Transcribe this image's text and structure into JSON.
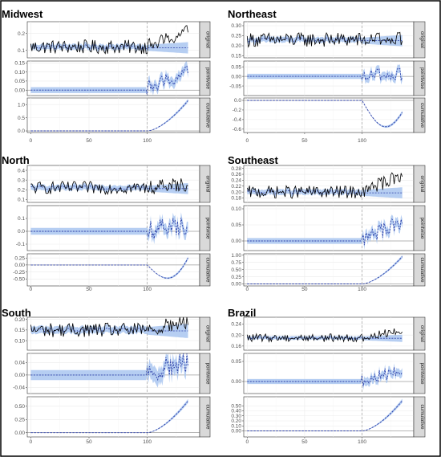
{
  "chart_data": [
    {
      "type": "line",
      "region": "Midwest",
      "intervention_x": 100,
      "xlim": [
        -3,
        145
      ],
      "xticks": [
        0,
        50,
        100
      ],
      "panels": [
        {
          "name": "original",
          "ylim": [
            0.055,
            0.27
          ],
          "yticks": [
            0.1,
            0.2
          ],
          "ytick_labels": [
            "0.1",
            "0.2"
          ]
        },
        {
          "name": "pointwise",
          "ylim": [
            -0.03,
            0.16
          ],
          "yticks": [
            0.0,
            0.05,
            0.1,
            0.15
          ],
          "ytick_labels": [
            "0.00",
            "0.05",
            "0.10",
            "0.15"
          ]
        },
        {
          "name": "cumulative",
          "ylim": [
            -0.06,
            1.25
          ],
          "yticks": [
            0.0,
            0.5,
            1.0
          ],
          "ytick_labels": [
            "0.0",
            "0.5",
            "1.0"
          ]
        }
      ],
      "series": {
        "base": 0.12,
        "noise": 0.035,
        "post_shift": 0.045,
        "band": 0.018,
        "cum_end": 1.15,
        "cum_shape": "rise"
      }
    },
    {
      "type": "line",
      "region": "Northeast",
      "intervention_x": 100,
      "xlim": [
        -3,
        145
      ],
      "xticks": [
        0,
        50,
        100
      ],
      "panels": [
        {
          "name": "original",
          "ylim": [
            0.14,
            0.32
          ],
          "yticks": [
            0.15,
            0.2,
            0.25,
            0.3
          ],
          "ytick_labels": [
            "0.15",
            "0.20",
            "0.25",
            "0.30"
          ]
        },
        {
          "name": "pointwise",
          "ylim": [
            -0.1,
            0.08
          ],
          "yticks": [
            -0.05,
            0.0,
            0.05
          ],
          "ytick_labels": [
            "-0.05",
            "0.00",
            "0.05"
          ]
        },
        {
          "name": "cumulative",
          "ylim": [
            -0.67,
            0.05
          ],
          "yticks": [
            0.0,
            -0.2,
            -0.4,
            -0.6
          ],
          "ytick_labels": [
            "0.0",
            "-0.2",
            "-0.4",
            "-0.6"
          ]
        }
      ],
      "series": {
        "base": 0.23,
        "noise": 0.03,
        "post_shift": 0.0,
        "band": 0.015,
        "cum_end": -0.3,
        "cum_shape": "dip"
      }
    },
    {
      "type": "line",
      "region": "North",
      "intervention_x": 100,
      "xlim": [
        -3,
        145
      ],
      "xticks": [
        0,
        50,
        100
      ],
      "panels": [
        {
          "name": "original",
          "ylim": [
            0.07,
            0.45
          ],
          "yticks": [
            0.1,
            0.2,
            0.3,
            0.4
          ],
          "ytick_labels": [
            "0.1",
            "0.2",
            "0.3",
            "0.4"
          ]
        },
        {
          "name": "pointwise",
          "ylim": [
            -0.15,
            0.2
          ],
          "yticks": [
            -0.1,
            0.0,
            0.1
          ],
          "ytick_labels": [
            "-0.1",
            "0.0",
            "0.1"
          ]
        },
        {
          "name": "cumulative",
          "ylim": [
            -0.75,
            0.4
          ],
          "yticks": [
            0.25,
            0.0,
            -0.25,
            -0.5
          ],
          "ytick_labels": [
            "0.25",
            "0.00",
            "-0.25",
            "-0.50"
          ]
        }
      ],
      "series": {
        "base": 0.22,
        "noise": 0.055,
        "post_shift": 0.02,
        "band": 0.03,
        "cum_end": 0.2,
        "cum_shape": "dip"
      }
    },
    {
      "type": "line",
      "region": "Southeast",
      "intervention_x": 100,
      "xlim": [
        -3,
        145
      ],
      "xticks": [
        0,
        50,
        100
      ],
      "panels": [
        {
          "name": "original",
          "ylim": [
            0.165,
            0.29
          ],
          "yticks": [
            0.18,
            0.2,
            0.22,
            0.24,
            0.26,
            0.28
          ],
          "ytick_labels": [
            "0.18",
            "0.20",
            "0.22",
            "0.24",
            "0.26",
            "0.28"
          ]
        },
        {
          "name": "pointwise",
          "ylim": [
            -0.03,
            0.11
          ],
          "yticks": [
            0.0,
            0.05,
            0.1
          ],
          "ytick_labels": [
            "0.00",
            "0.05",
            "0.10"
          ]
        },
        {
          "name": "cumulative",
          "ylim": [
            -0.07,
            1.05
          ],
          "yticks": [
            0.0,
            0.25,
            0.5,
            0.75,
            1.0
          ],
          "ytick_labels": [
            "0.00",
            "0.25",
            "0.50",
            "0.75",
            "1.00"
          ]
        }
      ],
      "series": {
        "base": 0.2,
        "noise": 0.018,
        "post_shift": 0.03,
        "band": 0.01,
        "cum_end": 0.95,
        "cum_shape": "rise"
      }
    },
    {
      "type": "line",
      "region": "South",
      "intervention_x": 100,
      "xlim": [
        -3,
        145
      ],
      "xticks": [
        0,
        50,
        100
      ],
      "panels": [
        {
          "name": "original",
          "ylim": [
            0.055,
            0.21
          ],
          "yticks": [
            0.1,
            0.15,
            0.2
          ],
          "ytick_labels": [
            "0.10",
            "0.15",
            "0.20"
          ]
        },
        {
          "name": "pointwise",
          "ylim": [
            -0.06,
            0.07
          ],
          "yticks": [
            -0.04,
            0.0,
            0.04
          ],
          "ytick_labels": [
            "-0.04",
            "0.00",
            "0.04"
          ]
        },
        {
          "name": "cumulative",
          "ylim": [
            -0.08,
            0.68
          ],
          "yticks": [
            0.0,
            0.25,
            0.5
          ],
          "ytick_labels": [
            "0.00",
            "0.25",
            "0.50"
          ]
        }
      ],
      "series": {
        "base": 0.15,
        "noise": 0.028,
        "post_shift": 0.02,
        "band": 0.018,
        "cum_end": 0.6,
        "cum_shape": "rise"
      }
    },
    {
      "type": "line",
      "region": "Brazil",
      "intervention_x": 100,
      "xlim": [
        -3,
        145
      ],
      "xticks": [
        0,
        50,
        100
      ],
      "panels": [
        {
          "name": "original",
          "ylim": [
            0.145,
            0.265
          ],
          "yticks": [
            0.16,
            0.2,
            0.24
          ],
          "ytick_labels": [
            "0.16",
            "0.20",
            "0.24"
          ]
        },
        {
          "name": "pointwise",
          "ylim": [
            -0.03,
            0.07
          ],
          "yticks": [
            0.0,
            0.05
          ],
          "ytick_labels": [
            "0.00",
            "0.05"
          ]
        },
        {
          "name": "cumulative",
          "ylim": [
            -0.12,
            0.68
          ],
          "yticks": [
            0.0,
            0.1,
            0.2,
            0.3,
            0.4,
            0.5
          ],
          "ytick_labels": [
            "0.00",
            "0.10",
            "0.20",
            "0.30",
            "0.40",
            "0.50"
          ]
        }
      ],
      "series": {
        "base": 0.19,
        "noise": 0.012,
        "post_shift": 0.015,
        "band": 0.007,
        "cum_end": 0.6,
        "cum_shape": "rise"
      }
    }
  ],
  "colors": {
    "observed": "#000000",
    "predicted": "#2b3ea8",
    "ribbon": "#a9c6f0",
    "strip": "#d9d9d9"
  }
}
